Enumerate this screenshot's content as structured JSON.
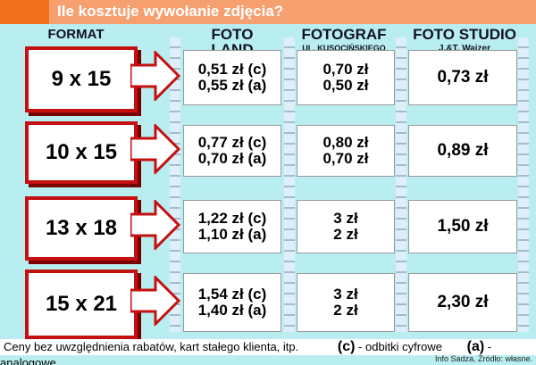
{
  "title": "Ile kosztuje wywołanie zdjęcia?",
  "headers": {
    "format": "FORMAT",
    "col1": "FOTO",
    "col1b": "LAND",
    "col2": "FOTOGRAF",
    "col2b": "UL. KUSOCIŃSKIEGO",
    "col3": "FOTO STUDIO",
    "col3b": "J.&T. Wajzer"
  },
  "rows": [
    {
      "format": "9 x 15",
      "col1": [
        "0,51 zł (c)",
        "0,55 zł (a)"
      ],
      "col2": [
        "0,70 zł",
        "0,50 zł"
      ],
      "col3": "0,73 zł"
    },
    {
      "format": "10 x 15",
      "col1": [
        "0,77 zł (c)",
        "0,70 zł (a)"
      ],
      "col2": [
        "0,80 zł",
        "0,70 zł"
      ],
      "col3": "0,89 zł"
    },
    {
      "format": "13 x 18",
      "col1": [
        "1,22 zł (c)",
        "1,10 zł (a)"
      ],
      "col2": [
        "3 zł",
        "2 zł"
      ],
      "col3": "1,50 zł"
    },
    {
      "format": "15 x 21",
      "col1": [
        "1,54 zł (c)",
        "1,40 zł (a)"
      ],
      "col2": [
        "3 zł",
        "2 zł"
      ],
      "col3": "2,30 zł"
    }
  ],
  "footer": {
    "note": "Ceny bez uwzględnienia rabatów, kart stałego klienta, itp.",
    "c": "(c)",
    "c_text": " - odbitki cyfrowe",
    "a": "(a)",
    "a_text": " - analogowe",
    "credit": "Info Sadza, Źródło: własne."
  },
  "colors": {
    "title_bar": "#f6a070",
    "accent": "#c41010",
    "background": "#b9eef0"
  }
}
